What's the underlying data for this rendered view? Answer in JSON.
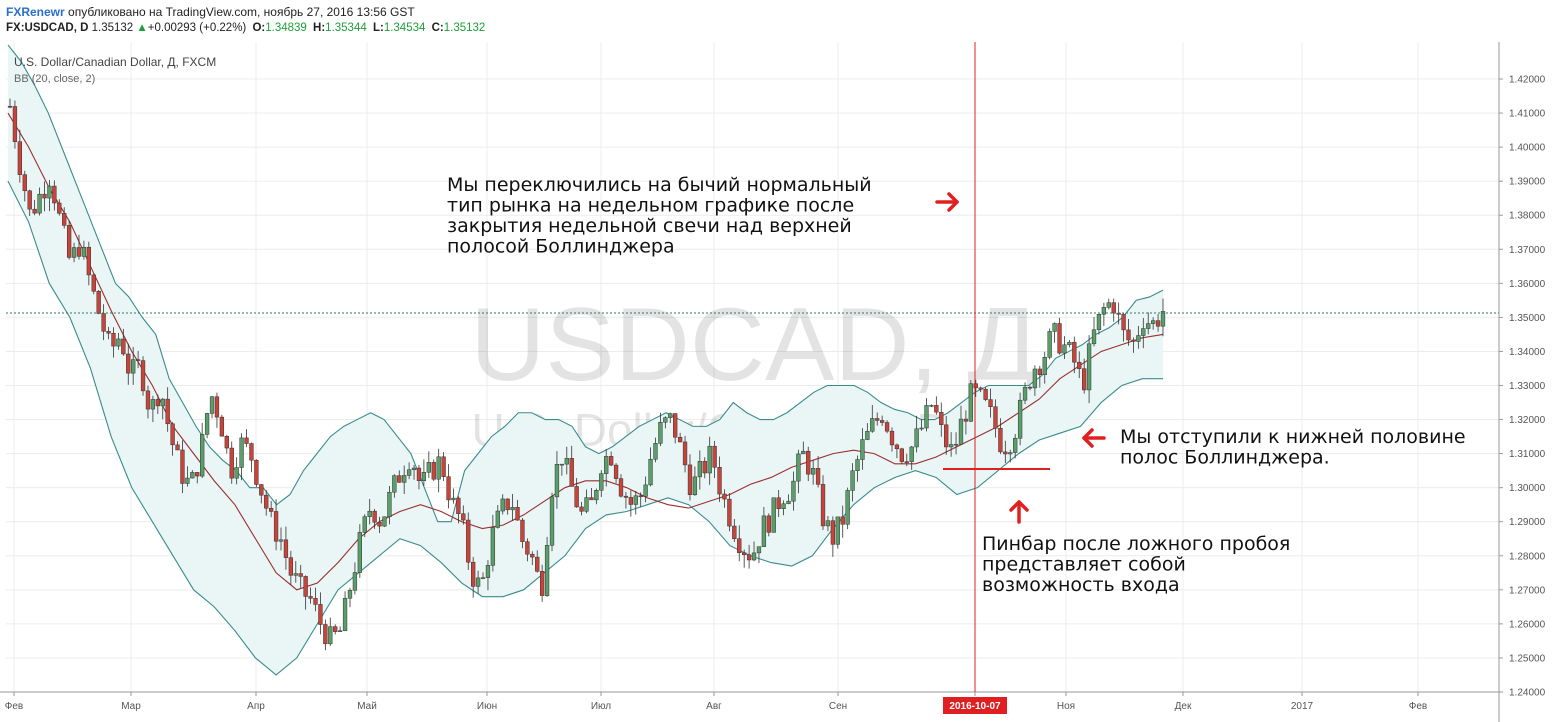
{
  "header": {
    "author": "FXRenewr",
    "published": "опубликовано на TradingView.com, ноябрь 27, 2016 13:56 GST",
    "symbol": "FX:USDCAD, D",
    "last": "1.35132",
    "change": "+0.00293 (+0.22%)",
    "o_label": "O:",
    "o": "1.34839",
    "h_label": "H:",
    "h": "1.35344",
    "l_label": "L:",
    "l": "1.34534",
    "c_label": "C:",
    "c": "1.35132",
    "accent_up": "#1e9e3b"
  },
  "chart_data": {
    "type": "candlestick",
    "title": "U.S. Dollar/Canadian Dollar, Д, FXCM",
    "indicator": "BB (20, close, 2)",
    "watermark_symbol": "USDCAD, Д",
    "watermark_name": "U.S. Dollar/Canadian Dollar",
    "ylim": [
      1.24,
      1.425
    ],
    "y_ticks": [
      "1.42000",
      "1.41000",
      "1.40000",
      "1.39000",
      "1.38000",
      "1.37000",
      "1.36000",
      "1.35000",
      "1.34000",
      "1.33000",
      "1.32000",
      "1.31000",
      "1.30000",
      "1.29000",
      "1.28000",
      "1.27000",
      "1.26000",
      "1.25000",
      "1.24000"
    ],
    "x_ticks": [
      "Фев",
      "Мар",
      "Апр",
      "Май",
      "Июн",
      "Июл",
      "Авг",
      "Сен",
      "2016-10-07",
      "Ноя",
      "Дек",
      "2017",
      "Фев"
    ],
    "highlight_date": "2016-10-07",
    "last_price": 1.3513,
    "colors": {
      "up": "#5a9e6a",
      "down": "#c8433a",
      "band_fill": "#eaf5f6",
      "band_line": "#3a8c8c",
      "mid_line": "#9b2f2f",
      "marker": "#e02020",
      "price_line": "#2a7a6a",
      "grid": "#ececec"
    },
    "close_path": [
      1.412,
      1.395,
      1.38,
      1.386,
      1.392,
      1.378,
      1.366,
      1.372,
      1.36,
      1.35,
      1.34,
      1.345,
      1.333,
      1.336,
      1.322,
      1.33,
      1.315,
      1.305,
      1.3,
      1.31,
      1.328,
      1.32,
      1.305,
      1.313,
      1.31,
      1.3,
      1.29,
      1.285,
      1.275,
      1.27,
      1.267,
      1.26,
      1.255,
      1.258,
      1.272,
      1.285,
      1.295,
      1.29,
      1.298,
      1.305,
      1.31,
      1.3,
      1.305,
      1.308,
      1.296,
      1.29,
      1.275,
      1.27,
      1.285,
      1.293,
      1.297,
      1.285,
      1.28,
      1.27,
      1.3,
      1.31,
      1.3,
      1.292,
      1.295,
      1.308,
      1.31,
      1.3,
      1.295,
      1.298,
      1.31,
      1.318,
      1.32,
      1.31,
      1.3,
      1.305,
      1.31,
      1.298,
      1.29,
      1.283,
      1.28,
      1.288,
      1.292,
      1.298,
      1.3,
      1.31,
      1.305,
      1.292,
      1.285,
      1.29,
      1.303,
      1.312,
      1.318,
      1.322,
      1.315,
      1.31,
      1.312,
      1.318,
      1.325,
      1.315,
      1.31,
      1.32,
      1.328,
      1.325,
      1.32,
      1.312,
      1.315,
      1.325,
      1.335,
      1.338,
      1.345,
      1.342,
      1.338,
      1.33,
      1.344,
      1.352,
      1.355,
      1.345,
      1.342,
      1.35,
      1.348,
      1.352
    ],
    "upper_band": [
      1.43,
      1.425,
      1.418,
      1.41,
      1.4,
      1.39,
      1.38,
      1.37,
      1.36,
      1.356,
      1.35,
      1.345,
      1.332,
      1.325,
      1.318,
      1.312,
      1.308,
      1.305,
      1.3,
      1.3,
      1.295,
      1.298,
      1.305,
      1.31,
      1.315,
      1.318,
      1.32,
      1.322,
      1.32,
      1.315,
      1.31,
      1.3,
      1.29,
      1.29,
      1.305,
      1.31,
      1.315,
      1.318,
      1.322,
      1.322,
      1.32,
      1.32,
      1.318,
      1.312,
      1.31,
      1.312,
      1.315,
      1.318,
      1.32,
      1.322,
      1.32,
      1.318,
      1.318,
      1.32,
      1.325,
      1.322,
      1.32,
      1.32,
      1.322,
      1.325,
      1.328,
      1.33,
      1.33,
      1.33,
      1.328,
      1.325,
      1.323,
      1.322,
      1.32,
      1.32,
      1.322,
      1.325,
      1.328,
      1.33,
      1.33,
      1.33,
      1.33,
      1.333,
      1.338,
      1.34,
      1.342,
      1.345,
      1.347,
      1.35,
      1.355,
      1.356,
      1.358
    ],
    "lower_band": [
      1.39,
      1.378,
      1.36,
      1.35,
      1.335,
      1.315,
      1.3,
      1.29,
      1.28,
      1.27,
      1.265,
      1.258,
      1.25,
      1.245,
      1.25,
      1.26,
      1.27,
      1.275,
      1.28,
      1.285,
      1.283,
      1.278,
      1.272,
      1.268,
      1.268,
      1.27,
      1.275,
      1.28,
      1.288,
      1.292,
      1.293,
      1.295,
      1.297,
      1.295,
      1.29,
      1.283,
      1.28,
      1.278,
      1.277,
      1.28,
      1.288,
      1.295,
      1.3,
      1.303,
      1.305,
      1.303,
      1.298,
      1.3,
      1.305,
      1.31,
      1.314,
      1.316,
      1.318,
      1.325,
      1.33,
      1.332,
      1.332
    ],
    "mid_band": [
      1.41,
      1.4,
      1.388,
      1.378,
      1.365,
      1.352,
      1.34,
      1.33,
      1.318,
      1.31,
      1.302,
      1.295,
      1.285,
      1.275,
      1.27,
      1.272,
      1.278,
      1.285,
      1.29,
      1.293,
      1.295,
      1.293,
      1.29,
      1.288,
      1.289,
      1.292,
      1.296,
      1.3,
      1.302,
      1.302,
      1.3,
      1.297,
      1.295,
      1.294,
      1.296,
      1.298,
      1.301,
      1.303,
      1.306,
      1.308,
      1.31,
      1.311,
      1.31,
      1.307,
      1.307,
      1.309,
      1.312,
      1.315,
      1.318,
      1.322,
      1.326,
      1.332,
      1.336,
      1.34,
      1.342,
      1.344,
      1.345
    ]
  },
  "annotations": {
    "top_text": "Мы переключились на бычий нормальный\nтип рынка на недельном графике после\nзакрытия недельной свечи над верхней\nполосой Боллинджера",
    "right_text": "Мы отступили к нижней половине\nполос Боллинджера.",
    "bottom_text": "Пинбар после ложного пробоя\nпредставляет собой\nвозможность входа"
  }
}
